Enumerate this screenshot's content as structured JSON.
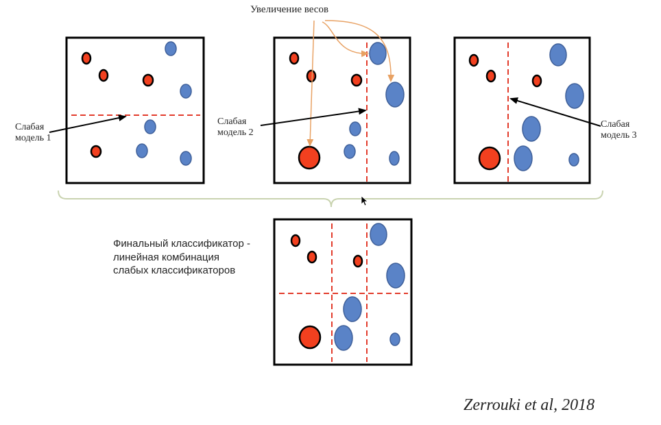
{
  "title": "Увеличение весов",
  "weak_model_1": [
    "Слабая",
    "модель 1"
  ],
  "weak_model_2": [
    "Слабая",
    "модель 2"
  ],
  "weak_model_3": [
    "Слабая",
    "модель 3"
  ],
  "final_classifier": [
    "Финальный классификатор -",
    "линейная комбинация",
    "слабых классификаторов"
  ],
  "citation": "Zerrouki et al, 2018",
  "colors": {
    "red_class": "#f2401f",
    "blue_class": "#5a83c7",
    "split_line": "#e23a2a",
    "arrow_weight": "#e8a163",
    "brace": "#c9d3b0",
    "box_border": "#000000"
  },
  "icons": [
    "mouse-cursor-icon"
  ]
}
